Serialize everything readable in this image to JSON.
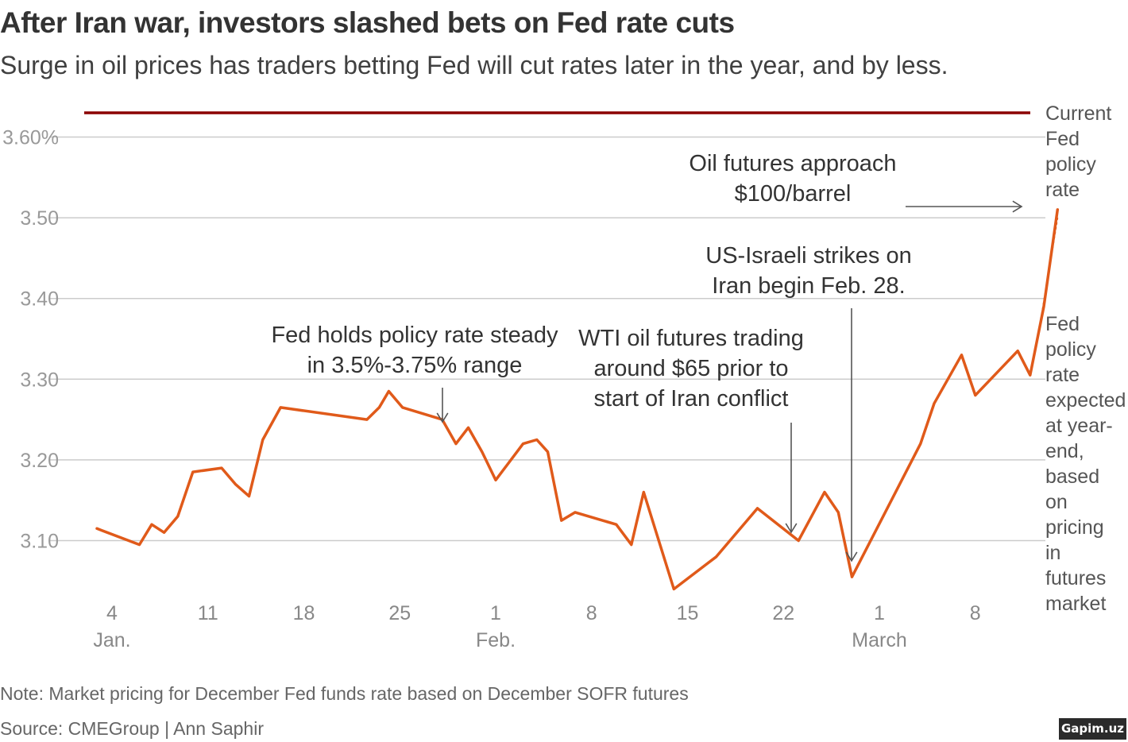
{
  "header": {
    "title": "After Iran war, investors slashed bets on Fed rate cuts",
    "subtitle": "Surge in oil prices has traders betting Fed will cut rates later in the year, and by less."
  },
  "footer": {
    "note": "Note: Market pricing for December Fed funds rate based on December SOFR futures",
    "source": "Source: CMEGroup | Ann Saphir",
    "watermark": "Gapim.uz"
  },
  "colors": {
    "series": "#e05a1a",
    "current_rate": "#8b0000",
    "grid": "#cccccc",
    "axis_text": "#999999",
    "annotation_text": "#333333",
    "arrow": "#555555"
  },
  "chart_data": {
    "type": "line",
    "title": "After Iran war, investors slashed bets on Fed rate cuts",
    "xlabel": "",
    "ylabel": "",
    "ylim": [
      3.02,
      3.64
    ],
    "xlim": [
      3,
      71
    ],
    "x_unit": "days since Jan. 1",
    "y_ticks": [
      {
        "value": 3.6,
        "label": "3.60%"
      },
      {
        "value": 3.5,
        "label": "3.50"
      },
      {
        "value": 3.4,
        "label": "3.40"
      },
      {
        "value": 3.3,
        "label": "3.30"
      },
      {
        "value": 3.2,
        "label": "3.20"
      },
      {
        "value": 3.1,
        "label": "3.10"
      }
    ],
    "x_ticks": [
      {
        "x": 4,
        "label": "4",
        "sublabel": "Jan."
      },
      {
        "x": 11,
        "label": "11",
        "sublabel": ""
      },
      {
        "x": 18,
        "label": "18",
        "sublabel": ""
      },
      {
        "x": 25,
        "label": "25",
        "sublabel": ""
      },
      {
        "x": 32,
        "label": "1",
        "sublabel": "Feb."
      },
      {
        "x": 39,
        "label": "8",
        "sublabel": ""
      },
      {
        "x": 46,
        "label": "15",
        "sublabel": ""
      },
      {
        "x": 53,
        "label": "22",
        "sublabel": ""
      },
      {
        "x": 60,
        "label": "1",
        "sublabel": "March"
      },
      {
        "x": 67,
        "label": "8",
        "sublabel": ""
      }
    ],
    "series": [
      {
        "name": "Fed policy rate expected at year-end, based on pricing in futures market",
        "x": [
          2.9,
          6.0,
          6.9,
          7.8,
          8.8,
          9.9,
          12.0,
          13.0,
          14.0,
          15.0,
          16.3,
          22.6,
          23.5,
          24.2,
          25.2,
          28.1,
          29.1,
          30.0,
          31.0,
          32.0,
          34.0,
          35.0,
          35.8,
          36.8,
          37.8,
          40.8,
          41.9,
          42.8,
          45.0,
          48.1,
          51.1,
          54.1,
          56.0,
          57.0,
          58.0,
          63.0,
          64.0,
          66.0,
          67.0,
          70.1,
          71.0,
          72.0,
          73.0
        ],
        "y": [
          3.115,
          3.095,
          3.12,
          3.11,
          3.13,
          3.185,
          3.19,
          3.17,
          3.155,
          3.225,
          3.265,
          3.25,
          3.265,
          3.285,
          3.265,
          3.25,
          3.22,
          3.24,
          3.21,
          3.175,
          3.22,
          3.225,
          3.21,
          3.125,
          3.135,
          3.12,
          3.095,
          3.16,
          3.04,
          3.08,
          3.14,
          3.1,
          3.16,
          3.135,
          3.055,
          3.22,
          3.27,
          3.33,
          3.28,
          3.335,
          3.305,
          3.39,
          3.51
        ]
      }
    ],
    "reference_lines": [
      {
        "name": "Current Fed policy rate",
        "y": 3.63,
        "label_lines": [
          "Current",
          "Fed",
          "policy",
          "rate"
        ]
      }
    ],
    "annotations": [
      {
        "id": "fed-holds",
        "lines": [
          "Fed holds policy rate steady",
          "in 3.5%-3.75% range"
        ]
      },
      {
        "id": "wti-65",
        "lines": [
          "WTI oil futures trading",
          "around $65 prior to",
          "start of Iran conflict"
        ]
      },
      {
        "id": "strikes",
        "lines": [
          "US-Israeli strikes on",
          "Iran begin Feb. 28."
        ]
      },
      {
        "id": "oil-100",
        "lines": [
          "Oil futures approach",
          "$100/barrel"
        ]
      },
      {
        "id": "expected",
        "lines": [
          "Fed",
          "policy",
          "rate",
          "expected",
          "at year-",
          "end,",
          "based",
          "on",
          "pricing",
          "in",
          "futures",
          "market"
        ]
      }
    ]
  }
}
